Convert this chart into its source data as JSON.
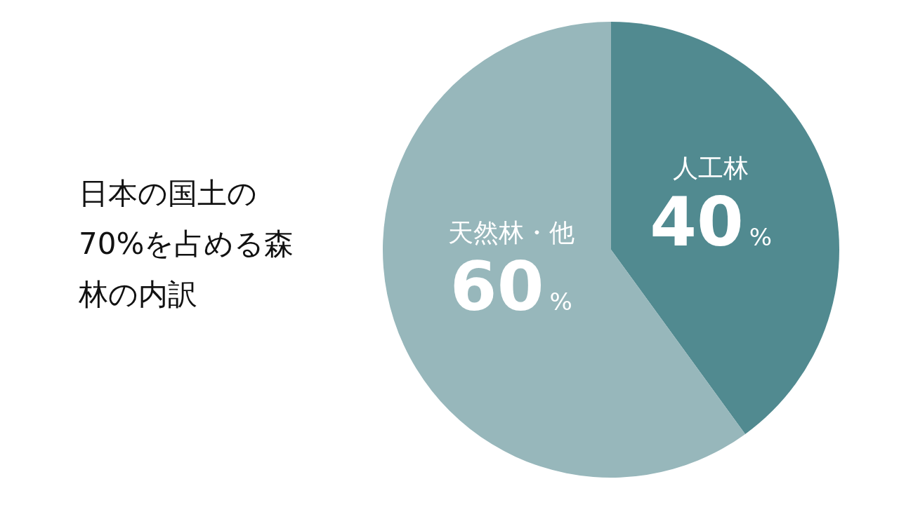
{
  "chart_data": {
    "type": "pie",
    "title": "日本の国土の70%を占める森林の内訳",
    "categories": [
      "人工林",
      "天然林・他"
    ],
    "values": [
      40,
      60
    ],
    "colors": [
      "#518a90",
      "#97b7bb"
    ],
    "value_labels": [
      "40%",
      "60%"
    ]
  }
}
